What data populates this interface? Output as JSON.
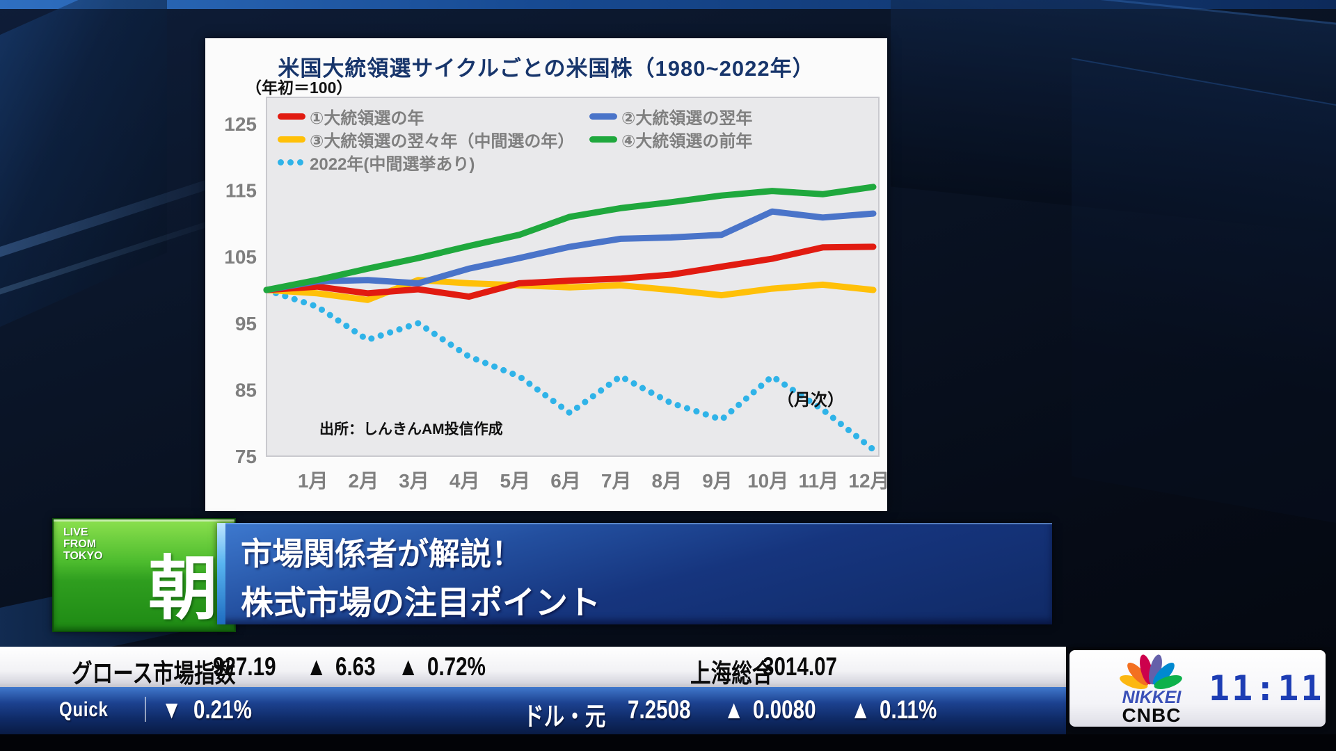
{
  "chart": {
    "title": "米国大統領選サイクルごとの米国株（1980~2022年）",
    "index_note": "（年初＝100）",
    "source": "出所：しんきんAM投信作成",
    "frequency_note": "（月次）"
  },
  "chart_data": {
    "type": "line",
    "title": "米国大統領選サイクルごとの米国株（1980~2022年）",
    "subtitle": "（年初＝100）",
    "categories": [
      "1月",
      "2月",
      "3月",
      "4月",
      "5月",
      "6月",
      "7月",
      "8月",
      "9月",
      "10月",
      "11月",
      "12月"
    ],
    "start_value": 100,
    "ylim": [
      75,
      125
    ],
    "yticks": [
      75,
      85,
      95,
      105,
      115,
      125
    ],
    "grid": false,
    "legend_position": "top-left-inside",
    "source": "出所：しんきんAM投信作成",
    "note": "（月次）",
    "series": [
      {
        "name": "①大統領選の年",
        "color": "#e11b11",
        "style": "solid",
        "values": [
          100.5,
          99.5,
          100.1,
          99.0,
          101.0,
          101.4,
          101.7,
          102.3,
          103.5,
          104.7,
          106.4,
          106.5
        ]
      },
      {
        "name": "②大統領選の翌年",
        "color": "#4a74c9",
        "style": "solid",
        "values": [
          101.3,
          101.5,
          101.0,
          103.2,
          104.8,
          106.5,
          107.7,
          107.9,
          108.3,
          111.8,
          110.9,
          111.5
        ]
      },
      {
        "name": "③大統領選の翌々年（中間選の年）",
        "color": "#ffc008",
        "style": "solid",
        "values": [
          99.5,
          98.5,
          101.5,
          101.0,
          100.7,
          100.4,
          100.7,
          100.0,
          99.2,
          100.2,
          100.8,
          100.0
        ]
      },
      {
        "name": "④大統領選の前年",
        "color": "#1fa83d",
        "style": "solid",
        "values": [
          101.5,
          103.2,
          104.8,
          106.6,
          108.3,
          111.0,
          112.3,
          113.2,
          114.2,
          114.9,
          114.4,
          115.5
        ]
      },
      {
        "name": "2022年(中間選挙あり)",
        "color": "#2fb3e8",
        "style": "dotted",
        "values": [
          97.5,
          92.5,
          95.0,
          90.0,
          87.0,
          81.5,
          87.0,
          83.0,
          80.5,
          87.0,
          82.0,
          76.0
        ]
      }
    ]
  },
  "lower_third": {
    "live1": "LIVE",
    "live2": "FROM",
    "live3": "TOKYO",
    "program": "朝",
    "headline_line1": "市場関係者が解説！",
    "headline_line2": "株式市場の注目ポイント"
  },
  "ticker": {
    "row1": {
      "name": "グロース市場指数",
      "value": "927.19",
      "up_symbol": "▲",
      "change": "6.63",
      "change_pct": "0.72%",
      "right_name": "上海総合",
      "right_value": "3014.07"
    },
    "row2": {
      "brand": "Quick",
      "down_symbol": "▼",
      "index_change_pct": "0.21%",
      "pair_name": "ドル・元",
      "pair_value": "7.2508",
      "up_symbol": "▲",
      "pair_change": "0.0080",
      "pair_change_pct": "0.11%"
    }
  },
  "station": {
    "logo_line1": "NIKKEI",
    "logo_line2": "CNBC",
    "clock": "11:11"
  },
  "colors": {
    "ticker_up": "#e31236",
    "ticker_down": "#41b6e8",
    "title_navy": "#17356b",
    "plot_background": "#e9e9eb",
    "badge_green": "#2f9e1f",
    "banner_blue": "#16357e",
    "clock_blue": "#1d3db4"
  }
}
